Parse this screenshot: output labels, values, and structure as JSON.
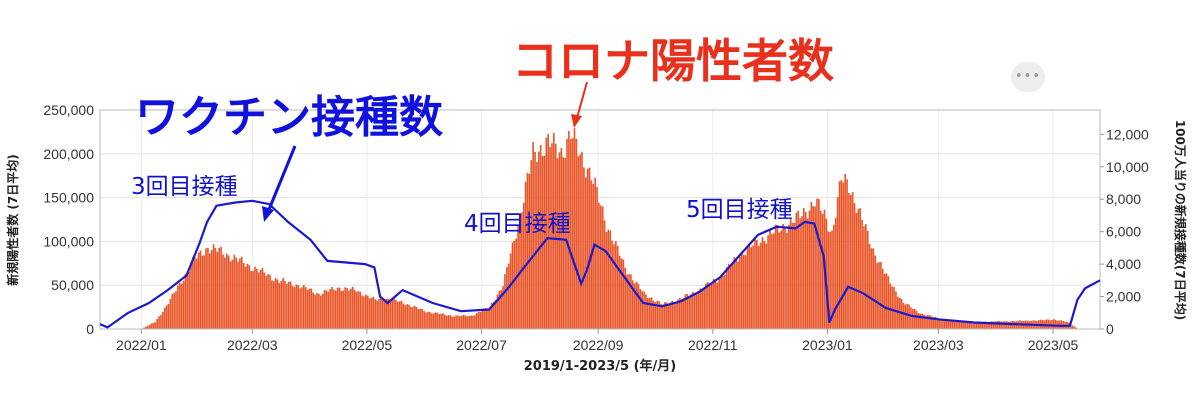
{
  "menu_button": {
    "label": "•••",
    "icon": "more-dots-icon"
  },
  "chart_data": {
    "type": "bar+line",
    "title": "",
    "xlabel": "2019/1-2023/5 (年/月)",
    "ylabel_left": "新規陽性者数 (7日平均)",
    "ylabel_right": "100万人当りの新規接種数(7日平均)",
    "x_ticks": [
      "2022/01",
      "2022/03",
      "2022/05",
      "2022/07",
      "2022/09",
      "2022/11",
      "2023/01",
      "2023/03",
      "2023/05"
    ],
    "y_left_ticks": [
      "0",
      "50,000",
      "100,000",
      "150,000",
      "200,000",
      "250,000"
    ],
    "y_right_ticks": [
      "0",
      "2,000",
      "4,000",
      "6,000",
      "8,000",
      "10,000",
      "12,000"
    ],
    "ylim_left": [
      0,
      250000
    ],
    "ylim_right": [
      0,
      13500
    ],
    "xlim": [
      "2021-12-10",
      "2023-05-26"
    ],
    "grid": true,
    "bar_color": "#e8562a",
    "line_color": "#1a1acc",
    "series": [
      {
        "name": "",
        "axis": "left",
        "kind": "bar",
        "points": [
          [
            "2021-12-10",
            200
          ],
          [
            "2021-12-28",
            400
          ],
          [
            "2022-01-01",
            500
          ],
          [
            "2022-01-08",
            8000
          ],
          [
            "2022-01-15",
            30000
          ],
          [
            "2022-01-22",
            55000
          ],
          [
            "2022-01-29",
            80000
          ],
          [
            "2022-02-05",
            93000
          ],
          [
            "2022-02-10",
            90000
          ],
          [
            "2022-02-20",
            80000
          ],
          [
            "2022-03-01",
            70000
          ],
          [
            "2022-03-15",
            55000
          ],
          [
            "2022-03-25",
            50000
          ],
          [
            "2022-04-05",
            40000
          ],
          [
            "2022-04-15",
            47000
          ],
          [
            "2022-04-25",
            44000
          ],
          [
            "2022-05-05",
            33000
          ],
          [
            "2022-05-10",
            35000
          ],
          [
            "2022-05-20",
            30000
          ],
          [
            "2022-06-01",
            20000
          ],
          [
            "2022-06-15",
            15000
          ],
          [
            "2022-06-25",
            15000
          ],
          [
            "2022-07-05",
            25000
          ],
          [
            "2022-07-12",
            50000
          ],
          [
            "2022-07-20",
            120000
          ],
          [
            "2022-07-28",
            200000
          ],
          [
            "2022-08-05",
            213000
          ],
          [
            "2022-08-12",
            202000
          ],
          [
            "2022-08-17",
            222000
          ],
          [
            "2022-08-22",
            200000
          ],
          [
            "2022-08-28",
            175000
          ],
          [
            "2022-09-05",
            120000
          ],
          [
            "2022-09-15",
            70000
          ],
          [
            "2022-09-25",
            40000
          ],
          [
            "2022-10-05",
            28000
          ],
          [
            "2022-10-15",
            35000
          ],
          [
            "2022-10-25",
            45000
          ],
          [
            "2022-11-05",
            60000
          ],
          [
            "2022-11-15",
            85000
          ],
          [
            "2022-11-25",
            100000
          ],
          [
            "2022-12-05",
            113000
          ],
          [
            "2022-12-15",
            125000
          ],
          [
            "2022-12-25",
            145000
          ],
          [
            "2022-12-30",
            130000
          ],
          [
            "2023-01-03",
            110000
          ],
          [
            "2023-01-08",
            170000
          ],
          [
            "2023-01-12",
            165000
          ],
          [
            "2023-01-18",
            130000
          ],
          [
            "2023-01-25",
            90000
          ],
          [
            "2023-02-01",
            60000
          ],
          [
            "2023-02-10",
            30000
          ],
          [
            "2023-02-20",
            17000
          ],
          [
            "2023-03-05",
            10000
          ],
          [
            "2023-03-20",
            8000
          ],
          [
            "2023-04-10",
            9000
          ],
          [
            "2023-04-25",
            10000
          ],
          [
            "2023-05-01",
            11000
          ],
          [
            "2023-05-08",
            8000
          ],
          [
            "2023-05-12",
            3000
          ],
          [
            "2023-05-14",
            0
          ]
        ]
      },
      {
        "name": "",
        "axis": "right",
        "kind": "line",
        "points": [
          [
            "2021-12-10",
            300
          ],
          [
            "2021-12-14",
            100
          ],
          [
            "2021-12-25",
            1000
          ],
          [
            "2022-01-05",
            1600
          ],
          [
            "2022-01-15",
            2400
          ],
          [
            "2022-01-25",
            3300
          ],
          [
            "2022-02-01",
            5300
          ],
          [
            "2022-02-05",
            6600
          ],
          [
            "2022-02-10",
            7600
          ],
          [
            "2022-02-20",
            7800
          ],
          [
            "2022-03-01",
            7900
          ],
          [
            "2022-03-10",
            7700
          ],
          [
            "2022-03-20",
            6600
          ],
          [
            "2022-04-01",
            5500
          ],
          [
            "2022-04-10",
            4200
          ],
          [
            "2022-04-30",
            4000
          ],
          [
            "2022-05-05",
            3800
          ],
          [
            "2022-05-08",
            2000
          ],
          [
            "2022-05-12",
            1600
          ],
          [
            "2022-05-20",
            2400
          ],
          [
            "2022-06-05",
            1600
          ],
          [
            "2022-06-20",
            1100
          ],
          [
            "2022-07-05",
            1200
          ],
          [
            "2022-07-15",
            2500
          ],
          [
            "2022-07-25",
            4000
          ],
          [
            "2022-08-05",
            5600
          ],
          [
            "2022-08-15",
            5500
          ],
          [
            "2022-08-20",
            3800
          ],
          [
            "2022-08-23",
            2800
          ],
          [
            "2022-08-26",
            3600
          ],
          [
            "2022-08-30",
            5200
          ],
          [
            "2022-09-05",
            4800
          ],
          [
            "2022-09-15",
            3200
          ],
          [
            "2022-09-25",
            1600
          ],
          [
            "2022-10-05",
            1400
          ],
          [
            "2022-10-15",
            1700
          ],
          [
            "2022-10-25",
            2300
          ],
          [
            "2022-11-05",
            3200
          ],
          [
            "2022-11-15",
            4500
          ],
          [
            "2022-11-25",
            5800
          ],
          [
            "2022-12-05",
            6300
          ],
          [
            "2022-12-15",
            6200
          ],
          [
            "2022-12-20",
            6600
          ],
          [
            "2022-12-25",
            6500
          ],
          [
            "2022-12-30",
            4500
          ],
          [
            "2023-01-02",
            400
          ],
          [
            "2023-01-05",
            1200
          ],
          [
            "2023-01-12",
            2600
          ],
          [
            "2023-01-20",
            2200
          ],
          [
            "2023-02-01",
            1300
          ],
          [
            "2023-02-15",
            800
          ],
          [
            "2023-03-01",
            600
          ],
          [
            "2023-03-20",
            400
          ],
          [
            "2023-04-10",
            300
          ],
          [
            "2023-05-05",
            200
          ],
          [
            "2023-05-10",
            200
          ],
          [
            "2023-05-14",
            1800
          ],
          [
            "2023-05-18",
            2500
          ],
          [
            "2023-05-26",
            3000
          ]
        ]
      }
    ],
    "annotations": [
      {
        "text": "ワクチン接種数",
        "style": "blue-large"
      },
      {
        "text": "コロナ陽性者数",
        "style": "red-large"
      },
      {
        "text": "3回目接種",
        "style": "blue-small"
      },
      {
        "text": "4回目接種",
        "style": "blue-small"
      },
      {
        "text": "5回目接種",
        "style": "blue-small"
      }
    ]
  }
}
